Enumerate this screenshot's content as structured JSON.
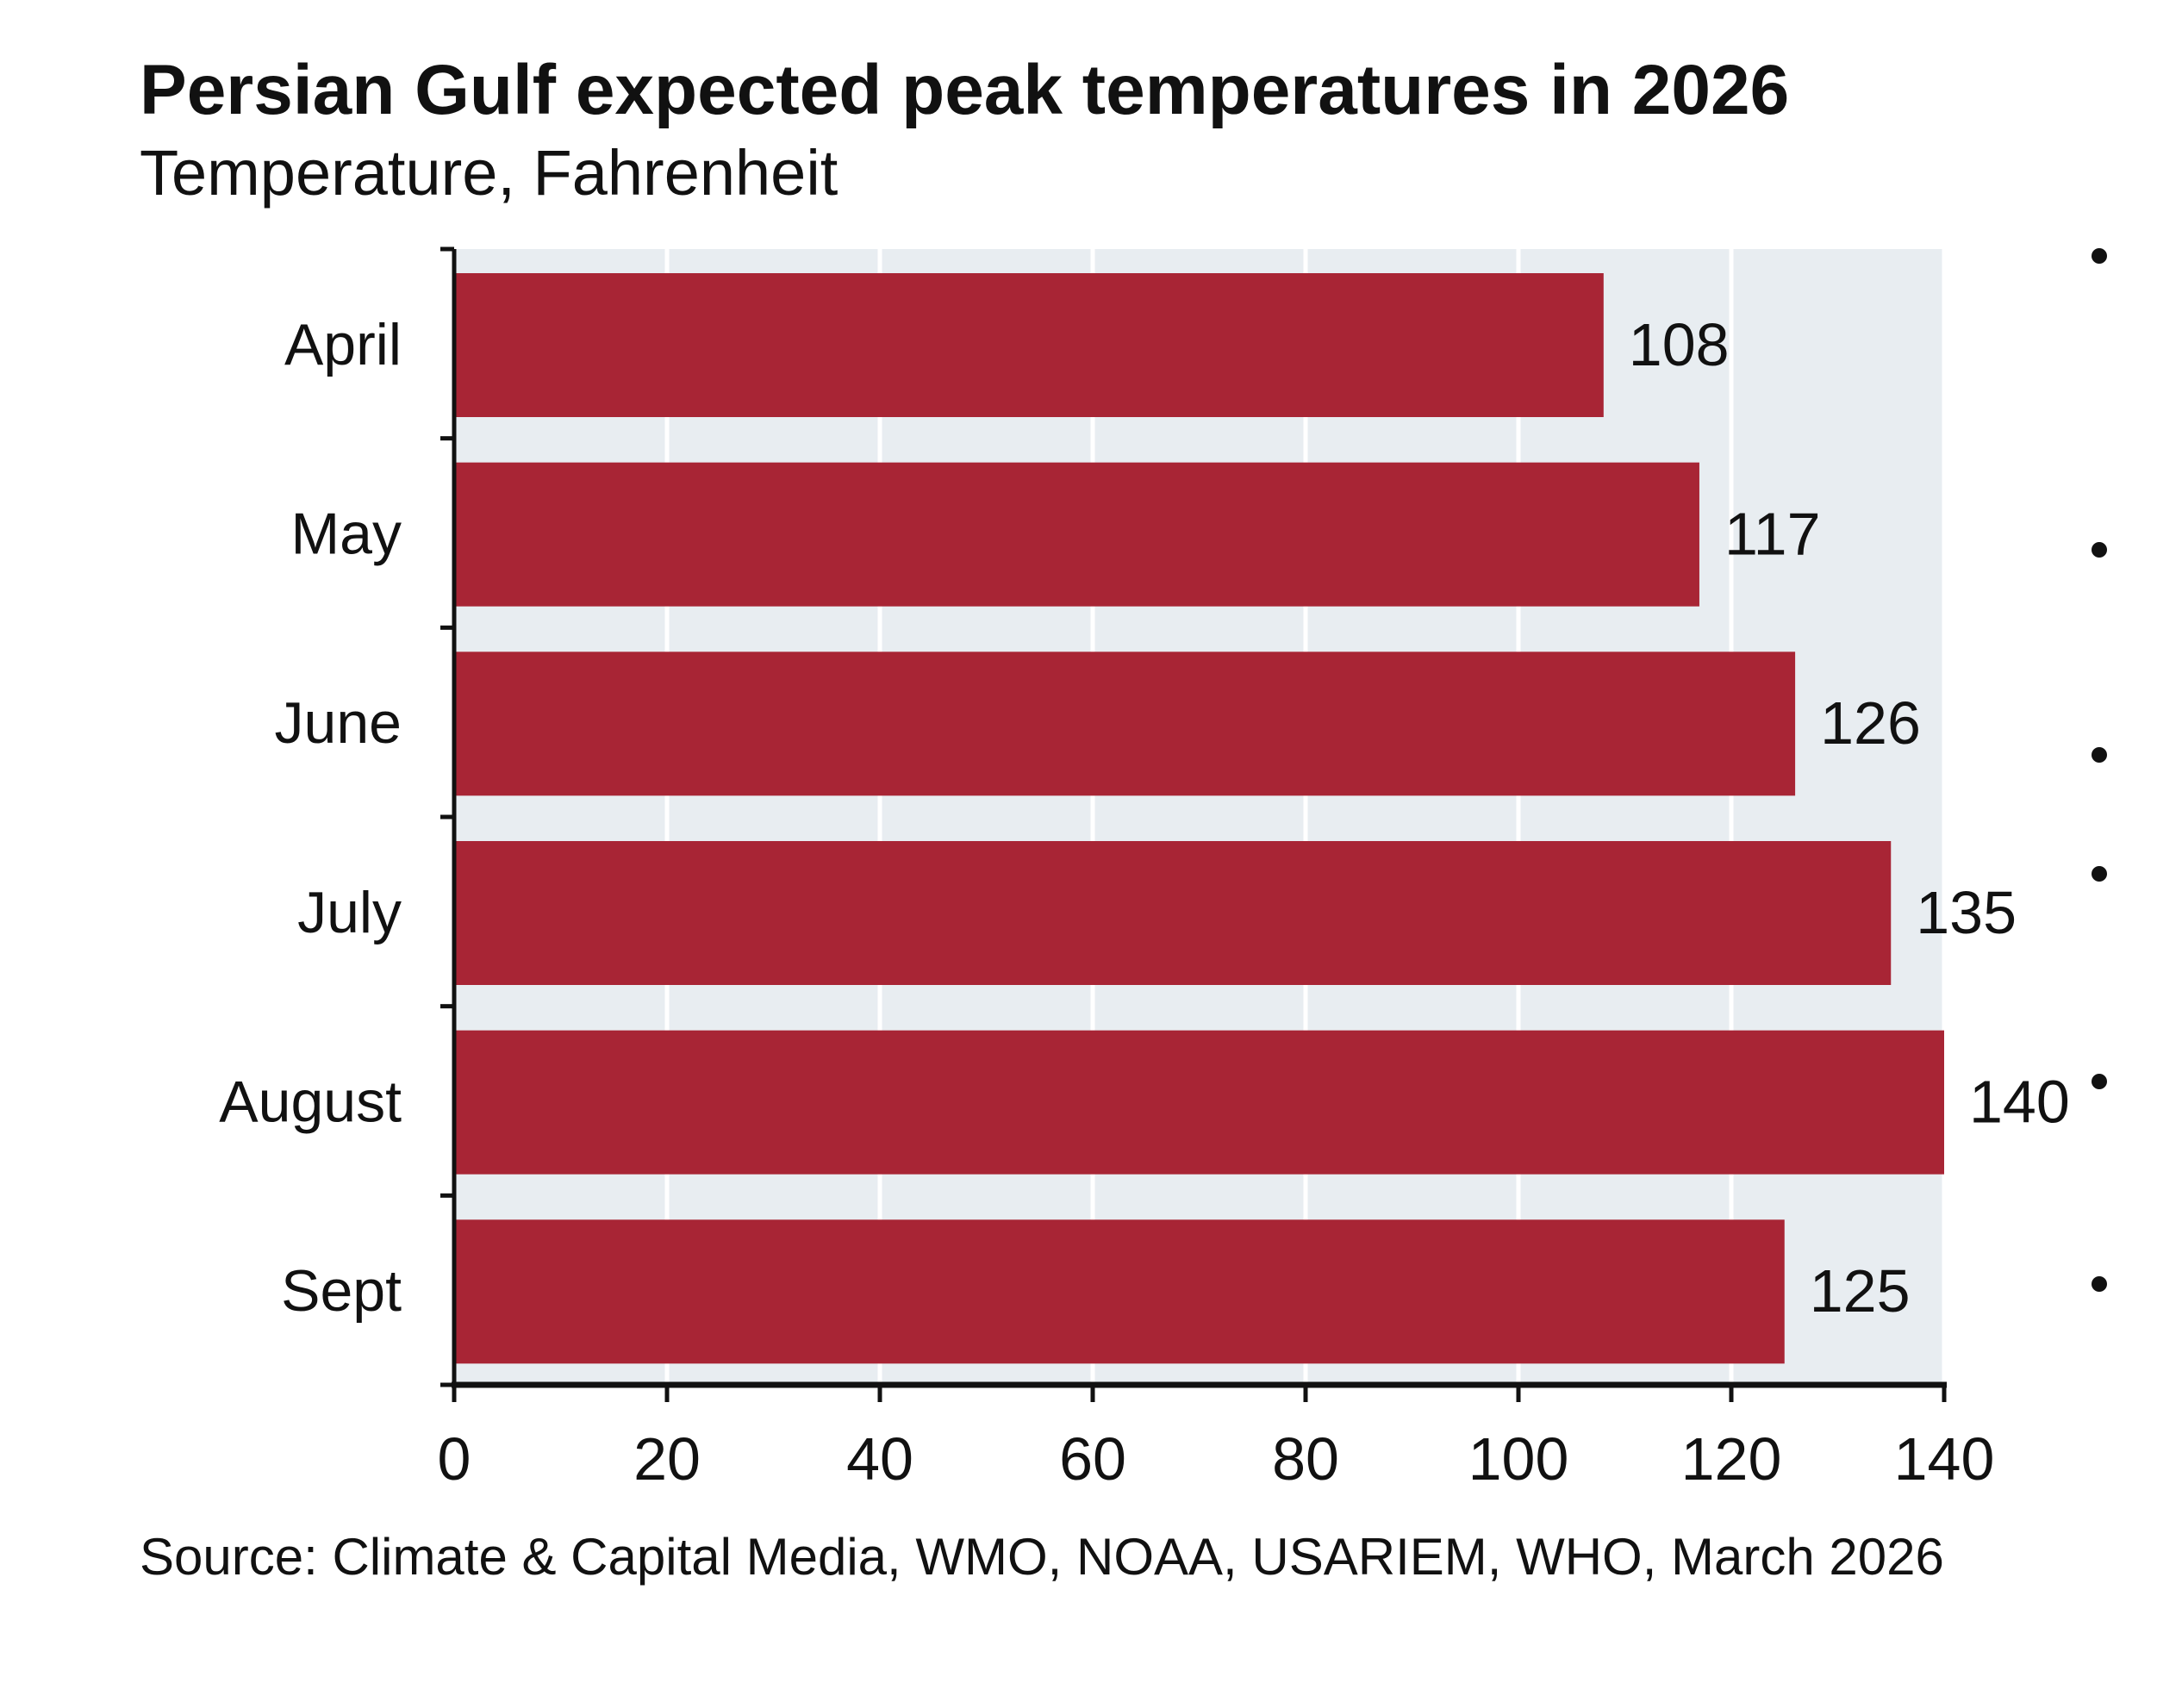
{
  "chart_data": {
    "type": "bar",
    "orientation": "horizontal",
    "title": "Persian Gulf expected peak temperatures in 2026",
    "subtitle": "Temperature, Fahrenheit",
    "categories": [
      "April",
      "May",
      "June",
      "July",
      "August",
      "Sept"
    ],
    "values": [
      108,
      117,
      126,
      135,
      140,
      125
    ],
    "data_labels": [
      "108",
      "117",
      "126",
      "135",
      "140",
      "125"
    ],
    "xlim": [
      0,
      140
    ],
    "x_ticks": [
      "0",
      "20",
      "40",
      "60",
      "80",
      "100",
      "120",
      "140"
    ],
    "xlabel": "",
    "ylabel": "",
    "grid": true,
    "source": "Source: Climate & Capital Media, WMO, NOAA, USARIEM, WHO, March 2026",
    "colors": {
      "bar": "#a82535",
      "plot_background": "#e8edf1",
      "gridline": "#ffffff",
      "axis": "#111111"
    }
  }
}
